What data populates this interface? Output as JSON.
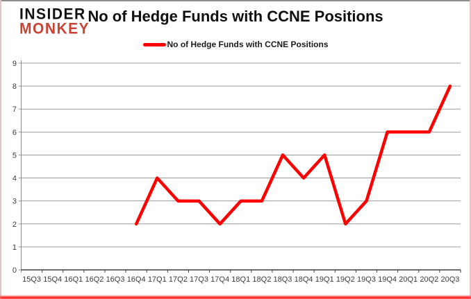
{
  "header": {
    "logo_top": "INSIDER",
    "logo_bottom": "MONKEY",
    "title": "No of Hedge Funds with CCNE Positions"
  },
  "legend": {
    "label": "No of Hedge Funds with CCNE Positions"
  },
  "colors": {
    "series_line": "#ff0000",
    "logo_black": "#111111",
    "logo_red": "#cb4335",
    "gridline": "#9c9c9c",
    "y_axis_line": "#8a8a8a",
    "x_axis_line": "#3f3f3f",
    "tick_label": "#3a3a3a",
    "frame_top": "#8f8f8f",
    "frame_side": "#eac3c3",
    "bottom_glow": "#ff0f0f"
  },
  "chart_data": {
    "type": "line",
    "title": "No of Hedge Funds with CCNE Positions",
    "categories": [
      "15Q3",
      "15Q4",
      "16Q1",
      "16Q2",
      "16Q3",
      "16Q4",
      "17Q1",
      "17Q2",
      "17Q3",
      "17Q4",
      "18Q1",
      "18Q2",
      "18Q3",
      "18Q4",
      "19Q1",
      "19Q2",
      "19Q3",
      "19Q4",
      "20Q1",
      "20Q2",
      "20Q3"
    ],
    "series": [
      {
        "name": "No of Hedge Funds with CCNE Positions",
        "color": "#ff0000",
        "values": [
          null,
          null,
          null,
          null,
          null,
          2,
          4,
          3,
          3,
          2,
          3,
          3,
          5,
          4,
          5,
          2,
          3,
          6,
          6,
          6,
          8
        ]
      }
    ],
    "xlabel": "",
    "ylabel": "",
    "ylim": [
      0,
      9
    ],
    "ytick_step": 1,
    "grid": true,
    "legend_position": "top-center"
  }
}
